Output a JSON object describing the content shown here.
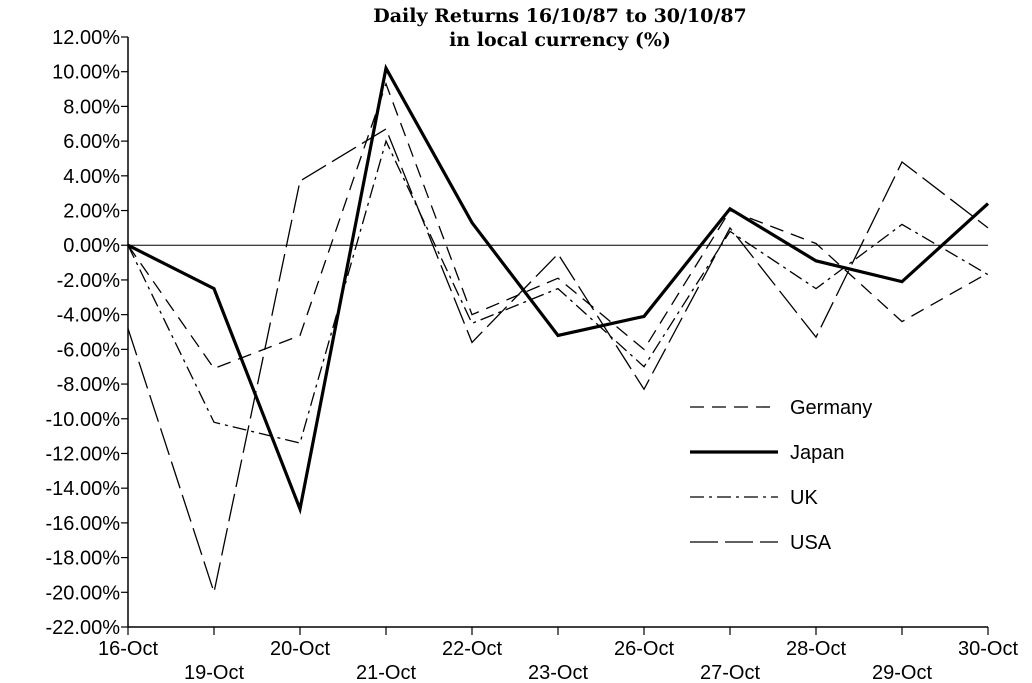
{
  "chart_data": {
    "type": "line",
    "title": "Daily Returns 16/10/87 to 30/10/87",
    "subtitle": "in local currency (%)",
    "xlabel": "",
    "ylabel": "",
    "categories": [
      "16-Oct",
      "19-Oct",
      "20-Oct",
      "21-Oct",
      "22-Oct",
      "23-Oct",
      "26-Oct",
      "27-Oct",
      "28-Oct",
      "29-Oct",
      "30-Oct"
    ],
    "ylim": [
      -22,
      12
    ],
    "yticks": [
      12,
      10,
      8,
      6,
      4,
      2,
      0,
      -2,
      -4,
      -6,
      -8,
      -10,
      -12,
      -14,
      -16,
      -18,
      -20,
      -22
    ],
    "ytick_labels": [
      "12.00%",
      "10.00%",
      "8.00%",
      "6.00%",
      "4.00%",
      "2.00%",
      "0.00%",
      "-2.00%",
      "-4.00%",
      "-6.00%",
      "-8.00%",
      "-10.00%",
      "-12.00%",
      "-14.00%",
      "-16.00%",
      "-18.00%",
      "-20.00%",
      "-22.00%"
    ],
    "grid": false,
    "zero_line": true,
    "legend_position": "right",
    "series": [
      {
        "name": "Germany",
        "style": "dashed",
        "values": [
          0.0,
          -7.1,
          -5.2,
          9.3,
          -4.0,
          -1.9,
          -6.0,
          2.0,
          0.1,
          -4.4,
          -1.6
        ]
      },
      {
        "name": "Japan",
        "style": "bold",
        "values": [
          0.0,
          -2.5,
          -15.2,
          10.2,
          1.3,
          -5.2,
          -4.1,
          2.1,
          -0.9,
          -2.1,
          2.4
        ]
      },
      {
        "name": "UK",
        "style": "dashdot",
        "values": [
          0.0,
          -10.2,
          -11.4,
          6.0,
          -4.5,
          -2.5,
          -7.0,
          0.8,
          -2.5,
          1.2,
          -1.7
        ]
      },
      {
        "name": "USA",
        "style": "longdash",
        "values": [
          -4.8,
          -20.0,
          3.7,
          6.7,
          -5.6,
          -0.5,
          -8.3,
          1.0,
          -5.3,
          4.8,
          1.0
        ]
      }
    ]
  }
}
